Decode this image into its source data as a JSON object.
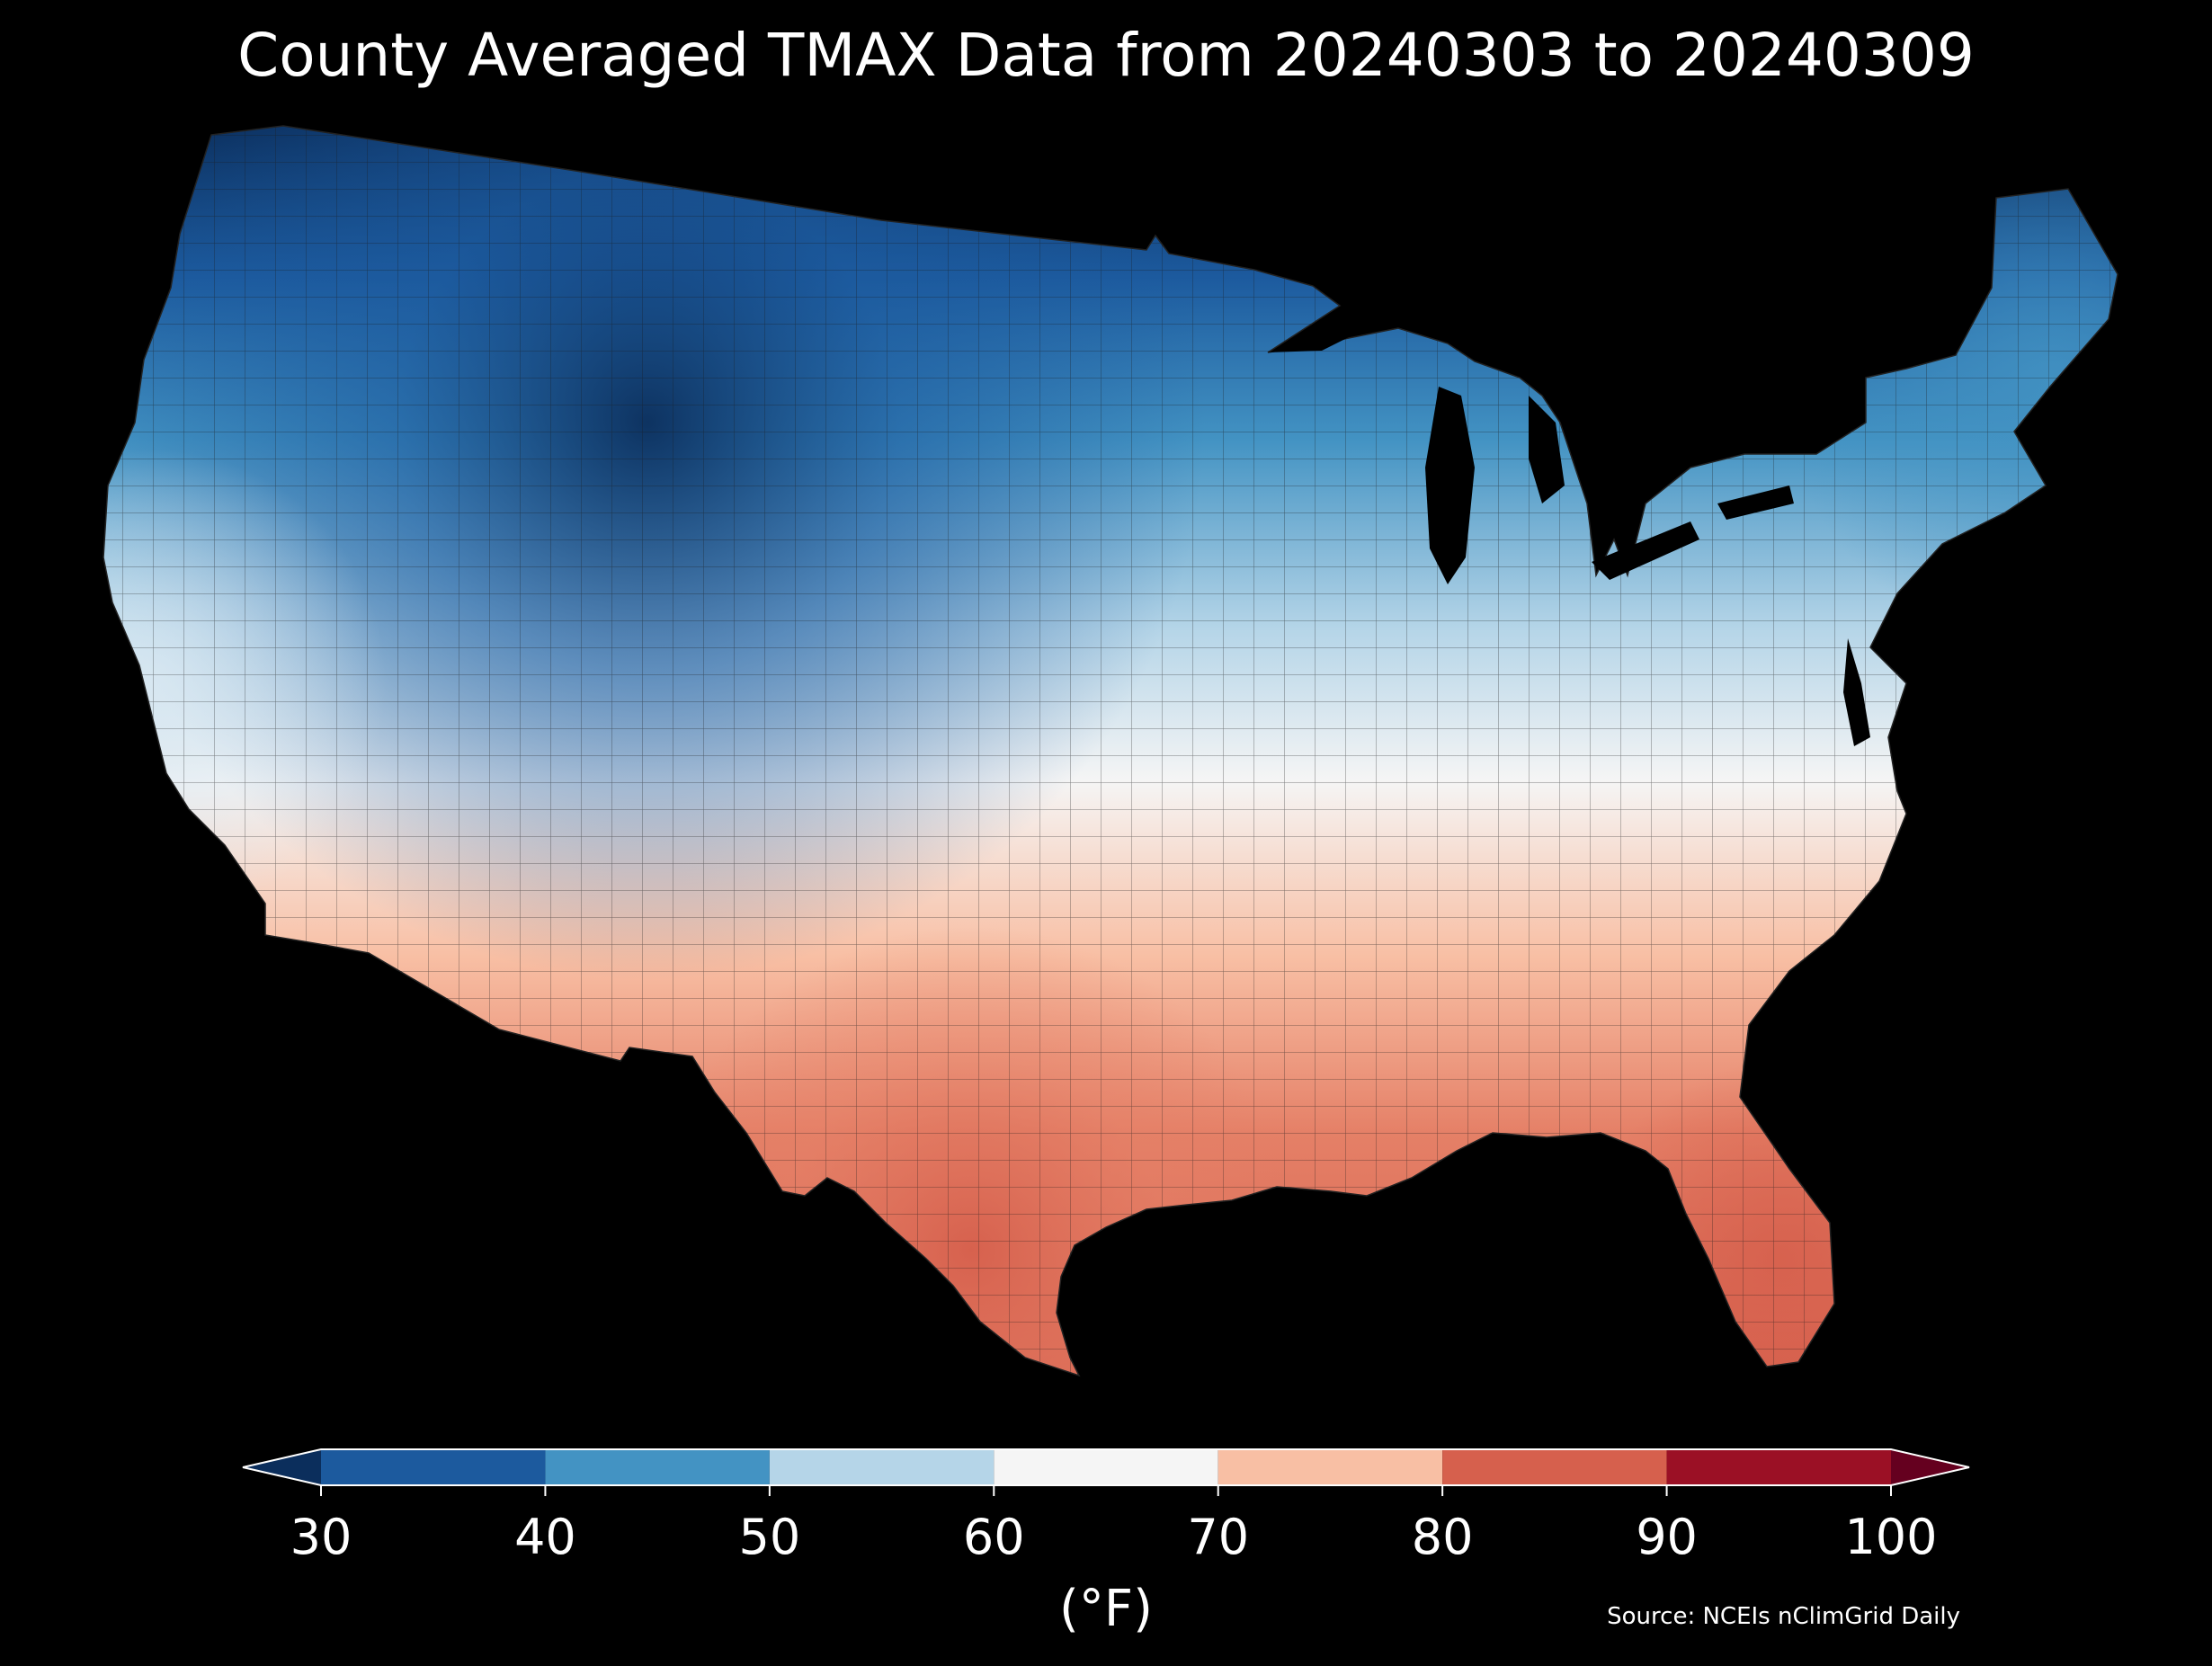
{
  "title": "County Averaged TMAX Data from 20240303 to 20240309",
  "source": "Source: NCEIs nClimGrid Daily",
  "colorbar": {
    "unit": "(°F)",
    "ticks": [
      "30",
      "40",
      "50",
      "60",
      "70",
      "80",
      "90",
      "100"
    ],
    "bins": [
      {
        "min": 30,
        "max": 40,
        "color": "#1c5a9e"
      },
      {
        "min": 40,
        "max": 50,
        "color": "#4393c3"
      },
      {
        "min": 50,
        "max": 60,
        "color": "#b5d5e8"
      },
      {
        "min": 60,
        "max": 70,
        "color": "#f5f5f5"
      },
      {
        "min": 70,
        "max": 80,
        "color": "#f8bfa4"
      },
      {
        "min": 80,
        "max": 90,
        "color": "#d6604d"
      },
      {
        "min": 90,
        "max": 100,
        "color": "#9b1025"
      }
    ],
    "under_color": "#0b2e5c",
    "over_color": "#65001f",
    "extend": "both"
  },
  "map": {
    "region": "Contiguous United States",
    "variable": "TMAX",
    "units": "°F",
    "background": "#000000",
    "water_color": "#000000",
    "county_border_color": "#1a1a1a",
    "value_range": [
      30,
      95
    ]
  }
}
